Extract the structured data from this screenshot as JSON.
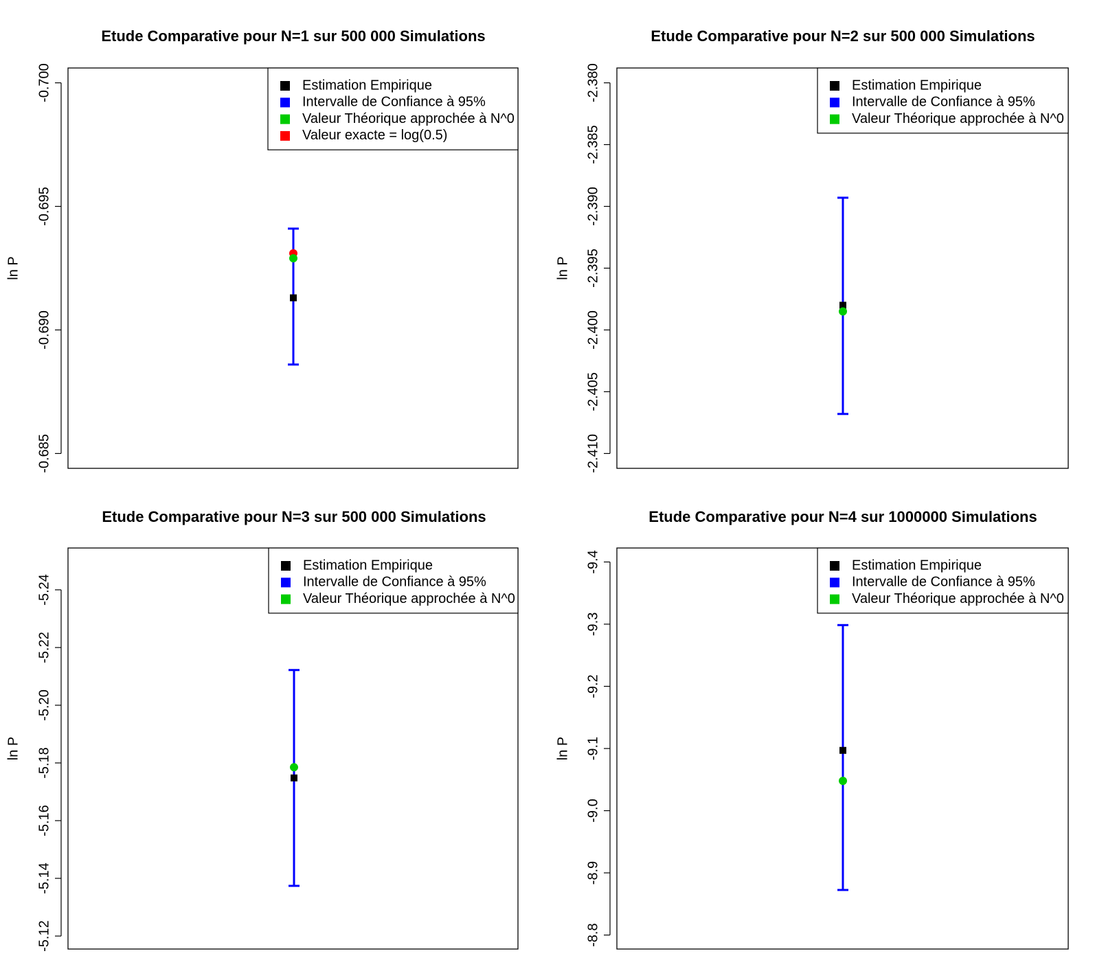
{
  "figure": {
    "ylabel_common": "ln P"
  },
  "chart_data": [
    {
      "type": "errorbar",
      "title": "Etude Comparative pour N=1 sur 500 000 Simulations",
      "ylabel": "ln P",
      "ylim": [
        -0.7006,
        -0.6844
      ],
      "yaxis_reversed": true,
      "yticks": [
        -0.7,
        -0.695,
        -0.69,
        -0.685
      ],
      "ytick_labels": [
        "-0.700",
        "-0.695",
        "-0.690",
        "-0.685"
      ],
      "legend": [
        {
          "label": "Estimation Empirique",
          "color": "#000000"
        },
        {
          "label": "Intervalle de Confiance à 95%",
          "color": "#0000ff"
        },
        {
          "label": "Valeur Théorique approchée à N^0",
          "color": "#00cc00"
        },
        {
          "label": "Valeur exacte = log(0.5)",
          "color": "#ff0000"
        }
      ],
      "estimate": -0.6913,
      "ci": [
        -0.6941,
        -0.6886
      ],
      "theoretical": -0.6929,
      "exact": -0.6931
    },
    {
      "type": "errorbar",
      "title": "Etude Comparative pour N=2 sur 500 000 Simulations",
      "ylabel": "ln P",
      "ylim": [
        -2.3788,
        -2.4112
      ],
      "yaxis_reversed": true,
      "yticks": [
        -2.38,
        -2.385,
        -2.39,
        -2.395,
        -2.4,
        -2.405,
        -2.41
      ],
      "ytick_labels": [
        "-2.380",
        "-2.385",
        "-2.390",
        "-2.395",
        "-2.400",
        "-2.405",
        "-2.410"
      ],
      "legend": [
        {
          "label": "Estimation Empirique",
          "color": "#000000"
        },
        {
          "label": "Intervalle de Confiance à 95%",
          "color": "#0000ff"
        },
        {
          "label": "Valeur Théorique approchée à N^0",
          "color": "#00cc00"
        }
      ],
      "estimate": -2.398,
      "ci": [
        -2.3893,
        -2.4068
      ],
      "theoretical": -2.3985
    },
    {
      "type": "errorbar",
      "title": "Etude Comparative pour N=3 sur 500 000 Simulations",
      "ylabel": "ln P",
      "ylim": [
        -5.2545,
        -5.1155
      ],
      "yaxis_reversed": true,
      "yticks": [
        -5.24,
        -5.22,
        -5.2,
        -5.18,
        -5.16,
        -5.14,
        -5.12
      ],
      "ytick_labels": [
        "-5.24",
        "-5.22",
        "-5.20",
        "-5.18",
        "-5.16",
        "-5.14",
        "-5.12"
      ],
      "legend": [
        {
          "label": "Estimation Empirique",
          "color": "#000000"
        },
        {
          "label": "Intervalle de Confiance à 95%",
          "color": "#0000ff"
        },
        {
          "label": "Valeur Théorique approchée à N^0",
          "color": "#00cc00"
        }
      ],
      "estimate": -5.1748,
      "ci": [
        -5.2122,
        -5.1374
      ],
      "theoretical": -5.1785
    },
    {
      "type": "errorbar",
      "title": "Etude Comparative pour N=4 sur 1000000 Simulations",
      "ylabel": "ln P",
      "ylim": [
        -9.4225,
        -8.7775
      ],
      "yaxis_reversed": true,
      "yticks": [
        -9.4,
        -9.3,
        -9.2,
        -9.1,
        -9.0,
        -8.9,
        -8.8
      ],
      "ytick_labels": [
        "-9.4",
        "-9.3",
        "-9.2",
        "-9.1",
        "-9.0",
        "-8.9",
        "-8.8"
      ],
      "legend": [
        {
          "label": "Estimation Empirique",
          "color": "#000000"
        },
        {
          "label": "Intervalle de Confiance à 95%",
          "color": "#0000ff"
        },
        {
          "label": "Valeur Théorique approchée à N^0",
          "color": "#00cc00"
        }
      ],
      "estimate": -9.097,
      "ci": [
        -9.2985,
        -8.8725
      ],
      "theoretical": -9.048
    }
  ]
}
